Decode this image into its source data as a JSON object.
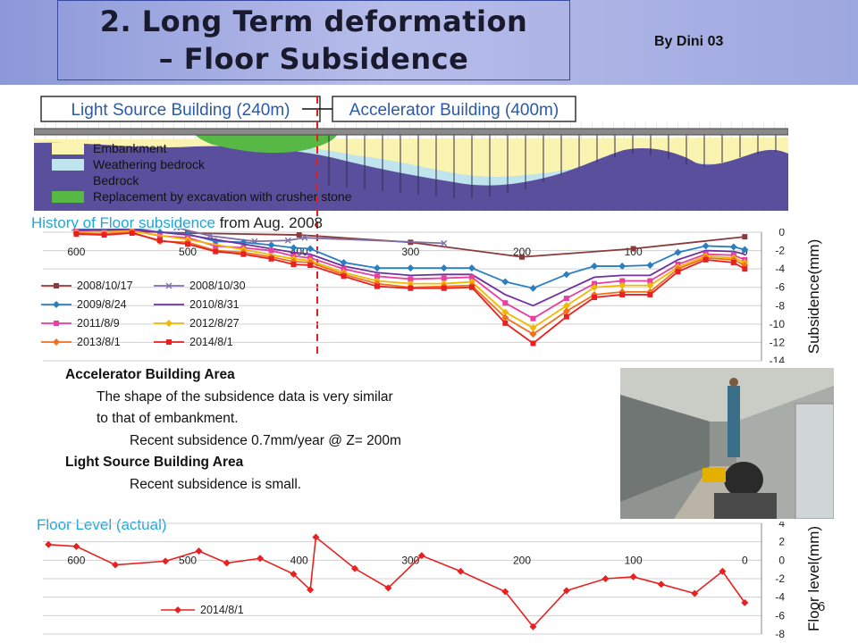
{
  "header": {
    "title_line1": "2. Long Term deformation",
    "title_line2": "– Floor Subsidence",
    "author": "By Dini 03"
  },
  "cross_section": {
    "light_source_label": "Light Source Building (240m)",
    "accelerator_label": "Accelerator Building (400m)",
    "legend": [
      {
        "label": "Embankment",
        "color": "#fbf3b0"
      },
      {
        "label": "Weathering bedrock",
        "color": "#bfe4ee"
      },
      {
        "label": "Bedrock",
        "color": "#5a4f9c"
      },
      {
        "label": "Replacement by excavation with crusher stone",
        "color": "#58b845"
      }
    ]
  },
  "subsidence_chart": {
    "heading_cyan": "History of Floor subsidence",
    "heading_dark": " from Aug. 2008",
    "ylabel": "Subsidence(mm)",
    "chart_data": {
      "type": "line",
      "x_axis_reversed": true,
      "xlim": [
        630,
        -15
      ],
      "ylim": [
        -14,
        0
      ],
      "x_ticks": [
        "600",
        "500",
        "400",
        "300",
        "200",
        "100",
        "0"
      ],
      "y_ticks": [
        "0",
        "-2",
        "-4",
        "-6",
        "-8",
        "-10",
        "-12",
        "-14"
      ],
      "legend_placement": "left, two columns",
      "series": [
        {
          "name": "2008/10/17",
          "color": "#8b3a3a",
          "marker": "square",
          "x": [
            600,
            500,
            400,
            300,
            200,
            100,
            0
          ],
          "y": [
            0.3,
            -0.1,
            -0.3,
            -1.1,
            -2.7,
            -1.8,
            -0.5
          ]
        },
        {
          "name": "2008/10/30",
          "color": "#7f6fa8",
          "marker": "x",
          "x": [
            600,
            510,
            480,
            440,
            410,
            395,
            270
          ],
          "y": [
            0.3,
            0.5,
            -0.4,
            -1.0,
            -0.9,
            -0.6,
            -1.2
          ]
        },
        {
          "name": "2009/8/24",
          "color": "#2a7fc0",
          "marker": "diamond",
          "x": [
            600,
            575,
            550,
            525,
            500,
            475,
            450,
            425,
            405,
            390,
            360,
            330,
            300,
            270,
            245,
            215,
            190,
            160,
            135,
            110,
            85,
            60,
            35,
            10,
            0
          ],
          "y": [
            0.3,
            0.2,
            0.4,
            0.0,
            -0.2,
            -1.0,
            -1.1,
            -1.4,
            -1.7,
            -1.8,
            -3.3,
            -3.9,
            -3.9,
            -3.9,
            -3.9,
            -5.4,
            -6.1,
            -4.6,
            -3.7,
            -3.7,
            -3.6,
            -2.2,
            -1.5,
            -1.6,
            -1.9
          ]
        },
        {
          "name": "2010/8/31",
          "color": "#7030a0",
          "marker": "none",
          "x": [
            600,
            550,
            500,
            450,
            405,
            390,
            360,
            330,
            300,
            270,
            245,
            215,
            190,
            160,
            135,
            110,
            85,
            60,
            35,
            10,
            0
          ],
          "y": [
            0.2,
            0.3,
            -0.3,
            -1.3,
            -2.2,
            -2.4,
            -3.7,
            -4.4,
            -4.7,
            -4.6,
            -4.6,
            -6.8,
            -8.0,
            -6.3,
            -4.9,
            -4.7,
            -4.7,
            -3.0,
            -2.0,
            -2.1,
            -2.4
          ]
        },
        {
          "name": "2011/8/9",
          "color": "#e83fa0",
          "marker": "square",
          "x": [
            600,
            575,
            550,
            525,
            500,
            475,
            450,
            425,
            405,
            390,
            360,
            330,
            300,
            270,
            245,
            215,
            190,
            160,
            135,
            110,
            85,
            60,
            35,
            10,
            0
          ],
          "y": [
            0.1,
            0.0,
            0.2,
            -0.4,
            -0.6,
            -1.5,
            -1.7,
            -2.0,
            -2.6,
            -2.8,
            -4.0,
            -4.8,
            -5.1,
            -5.0,
            -4.9,
            -7.7,
            -9.4,
            -7.2,
            -5.6,
            -5.3,
            -5.3,
            -3.5,
            -2.4,
            -2.5,
            -3.0
          ]
        },
        {
          "name": "2012/8/27",
          "color": "#f2b800",
          "marker": "diamond",
          "x": [
            600,
            550,
            500,
            450,
            405,
            390,
            360,
            330,
            300,
            270,
            245,
            215,
            190,
            160,
            135,
            110,
            85,
            60,
            35,
            10,
            0
          ],
          "y": [
            0.0,
            0.1,
            -0.8,
            -1.9,
            -2.9,
            -3.1,
            -4.4,
            -5.3,
            -5.6,
            -5.6,
            -5.4,
            -8.7,
            -10.4,
            -8.0,
            -6.0,
            -5.8,
            -5.8,
            -3.8,
            -2.6,
            -2.8,
            -3.3
          ]
        },
        {
          "name": "2013/8/1",
          "color": "#f07020",
          "marker": "diamond",
          "x": [
            600,
            575,
            550,
            525,
            500,
            475,
            450,
            425,
            405,
            390,
            360,
            330,
            300,
            270,
            245,
            215,
            190,
            160,
            135,
            110,
            85,
            60,
            35,
            10,
            0
          ],
          "y": [
            -0.1,
            -0.2,
            0.0,
            -1.0,
            -1.1,
            -2.0,
            -2.2,
            -2.7,
            -3.2,
            -3.3,
            -4.6,
            -5.6,
            -6.0,
            -5.9,
            -5.8,
            -9.3,
            -11.1,
            -8.6,
            -6.8,
            -6.5,
            -6.5,
            -4.0,
            -2.8,
            -3.0,
            -3.6
          ]
        },
        {
          "name": "2014/8/1",
          "color": "#e82020",
          "marker": "square",
          "x": [
            600,
            575,
            550,
            525,
            500,
            475,
            450,
            425,
            405,
            390,
            360,
            330,
            300,
            270,
            245,
            215,
            190,
            160,
            135,
            110,
            85,
            60,
            35,
            10,
            0
          ],
          "y": [
            -0.2,
            -0.3,
            -0.1,
            -0.9,
            -1.3,
            -2.1,
            -2.4,
            -2.9,
            -3.5,
            -3.6,
            -4.8,
            -5.9,
            -6.1,
            -6.1,
            -6.0,
            -9.9,
            -12.1,
            -9.2,
            -7.1,
            -6.8,
            -6.8,
            -4.3,
            -3.0,
            -3.3,
            -4.0
          ]
        }
      ]
    }
  },
  "notes": {
    "acc_heading": "Accelerator Building Area",
    "acc_line1": "The shape of the subsidence data is very similar",
    "acc_line2": "to that of embankment.",
    "acc_line3": "Recent subsidence   0.7mm/year @ Z= 200m",
    "ls_heading": "Light Source Building Area",
    "ls_line1": "Recent subsidence is small."
  },
  "floor_level_chart": {
    "heading": "Floor Level  (actual)",
    "ylabel": "Floor level(mm)",
    "chart_data": {
      "type": "line",
      "x_axis_reversed": true,
      "xlim": [
        630,
        -15
      ],
      "ylim": [
        -8,
        4
      ],
      "x_ticks": [
        "600",
        "500",
        "400",
        "300",
        "200",
        "100",
        "0"
      ],
      "y_ticks": [
        "4",
        "2",
        "0",
        "-2",
        "-4",
        "-6",
        "-8"
      ],
      "legend_placement": "bottom-left",
      "series": [
        {
          "name": "2014/8/1",
          "color": "#e82020",
          "marker": "diamond",
          "x": [
            625,
            600,
            565,
            520,
            490,
            465,
            435,
            405,
            390,
            385,
            350,
            320,
            290,
            255,
            215,
            190,
            160,
            125,
            100,
            75,
            45,
            20,
            0
          ],
          "y": [
            1.7,
            1.5,
            -0.5,
            -0.1,
            1.0,
            -0.3,
            0.2,
            -1.5,
            -3.2,
            2.5,
            -0.9,
            -3.0,
            0.5,
            -1.2,
            -3.4,
            -7.2,
            -3.3,
            -2.0,
            -1.8,
            -2.6,
            -3.6,
            -1.2,
            -4.6
          ]
        }
      ]
    }
  },
  "page_number": "6"
}
